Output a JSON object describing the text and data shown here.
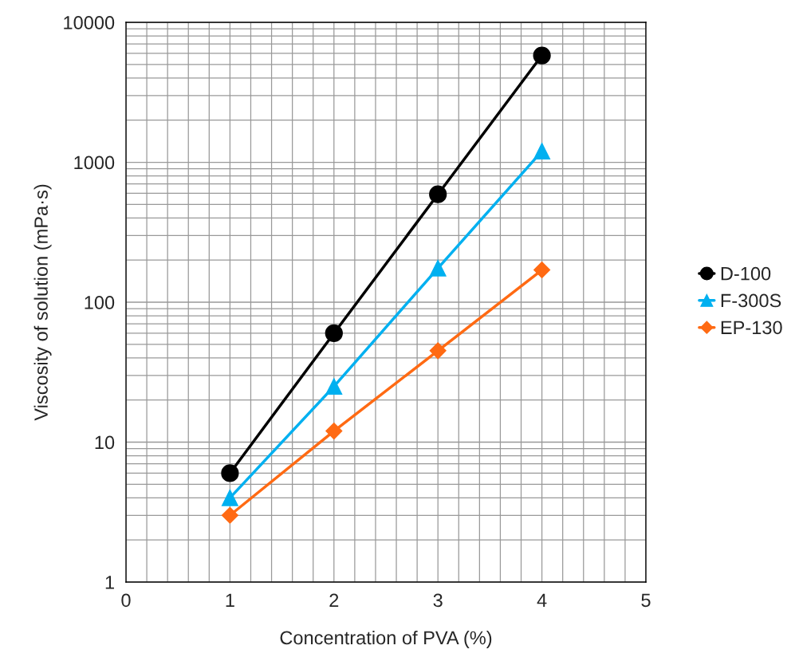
{
  "chart_data": {
    "type": "line",
    "xlabel": "Concentration of PVA (%)",
    "ylabel": "Viscosity of solution (mPa·s)",
    "x": [
      1,
      2,
      3,
      4
    ],
    "series": [
      {
        "name": "D-100",
        "color": "#000000",
        "marker": "circle",
        "values": [
          6,
          60,
          590,
          5800
        ]
      },
      {
        "name": "F-300S",
        "color": "#00b0f0",
        "marker": "triangle",
        "values": [
          4,
          25,
          175,
          1200
        ]
      },
      {
        "name": "EP-130",
        "color": "#ff6a13",
        "marker": "diamond",
        "values": [
          3,
          12,
          45,
          170
        ]
      }
    ],
    "log": "y",
    "xlim": [
      0,
      5
    ],
    "xticks": [
      0,
      1,
      2,
      3,
      4,
      5
    ],
    "ylim": [
      1,
      10000
    ],
    "yticks": [
      1,
      10,
      100,
      1000,
      10000
    ],
    "grid": true,
    "legend": "right"
  }
}
